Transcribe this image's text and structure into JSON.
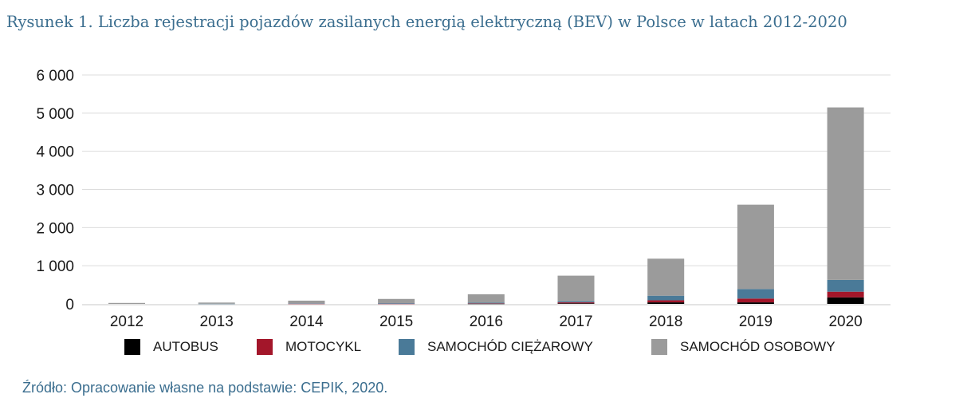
{
  "figure": {
    "title": "Rysunek 1.  Liczba rejestracji pojazdów zasilanych energią elektryczną (BEV) w Polsce w latach 2012-2020",
    "source": "Źródło: Opracowanie własne na podstawie: CEPIK, 2020."
  },
  "chart_data": {
    "type": "bar",
    "stacked": true,
    "title": "Liczba rejestracji pojazdów zasilanych energią elektryczną (BEV) w Polsce w latach 2012-2020",
    "xlabel": "",
    "ylabel": "",
    "categories": [
      "2012",
      "2013",
      "2014",
      "2015",
      "2016",
      "2017",
      "2018",
      "2019",
      "2020"
    ],
    "ylim": [
      0,
      6000
    ],
    "yticks": [
      0,
      1000,
      2000,
      3000,
      4000,
      5000,
      6000
    ],
    "ytick_labels": [
      "0",
      "1 000",
      "2 000",
      "3 000",
      "4 000",
      "5 000",
      "6 000"
    ],
    "grid": true,
    "legend_position": "bottom",
    "series": [
      {
        "name": "AUTOBUS",
        "color": "#000000",
        "values": [
          0,
          0,
          0,
          0,
          5,
          15,
          40,
          40,
          170
        ]
      },
      {
        "name": "MOTOCYKL",
        "color": "#a3162a",
        "values": [
          0,
          0,
          5,
          5,
          8,
          25,
          55,
          100,
          150
        ]
      },
      {
        "name": "SAMOCHÓD CIĘŻAROWY",
        "color": "#4a7a98",
        "values": [
          0,
          5,
          10,
          15,
          20,
          30,
          120,
          250,
          310
        ]
      },
      {
        "name": "SAMOCHÓD OSOBOWY",
        "color": "#9b9b9b",
        "values": [
          25,
          30,
          70,
          110,
          220,
          670,
          970,
          2210,
          4520
        ]
      }
    ]
  }
}
